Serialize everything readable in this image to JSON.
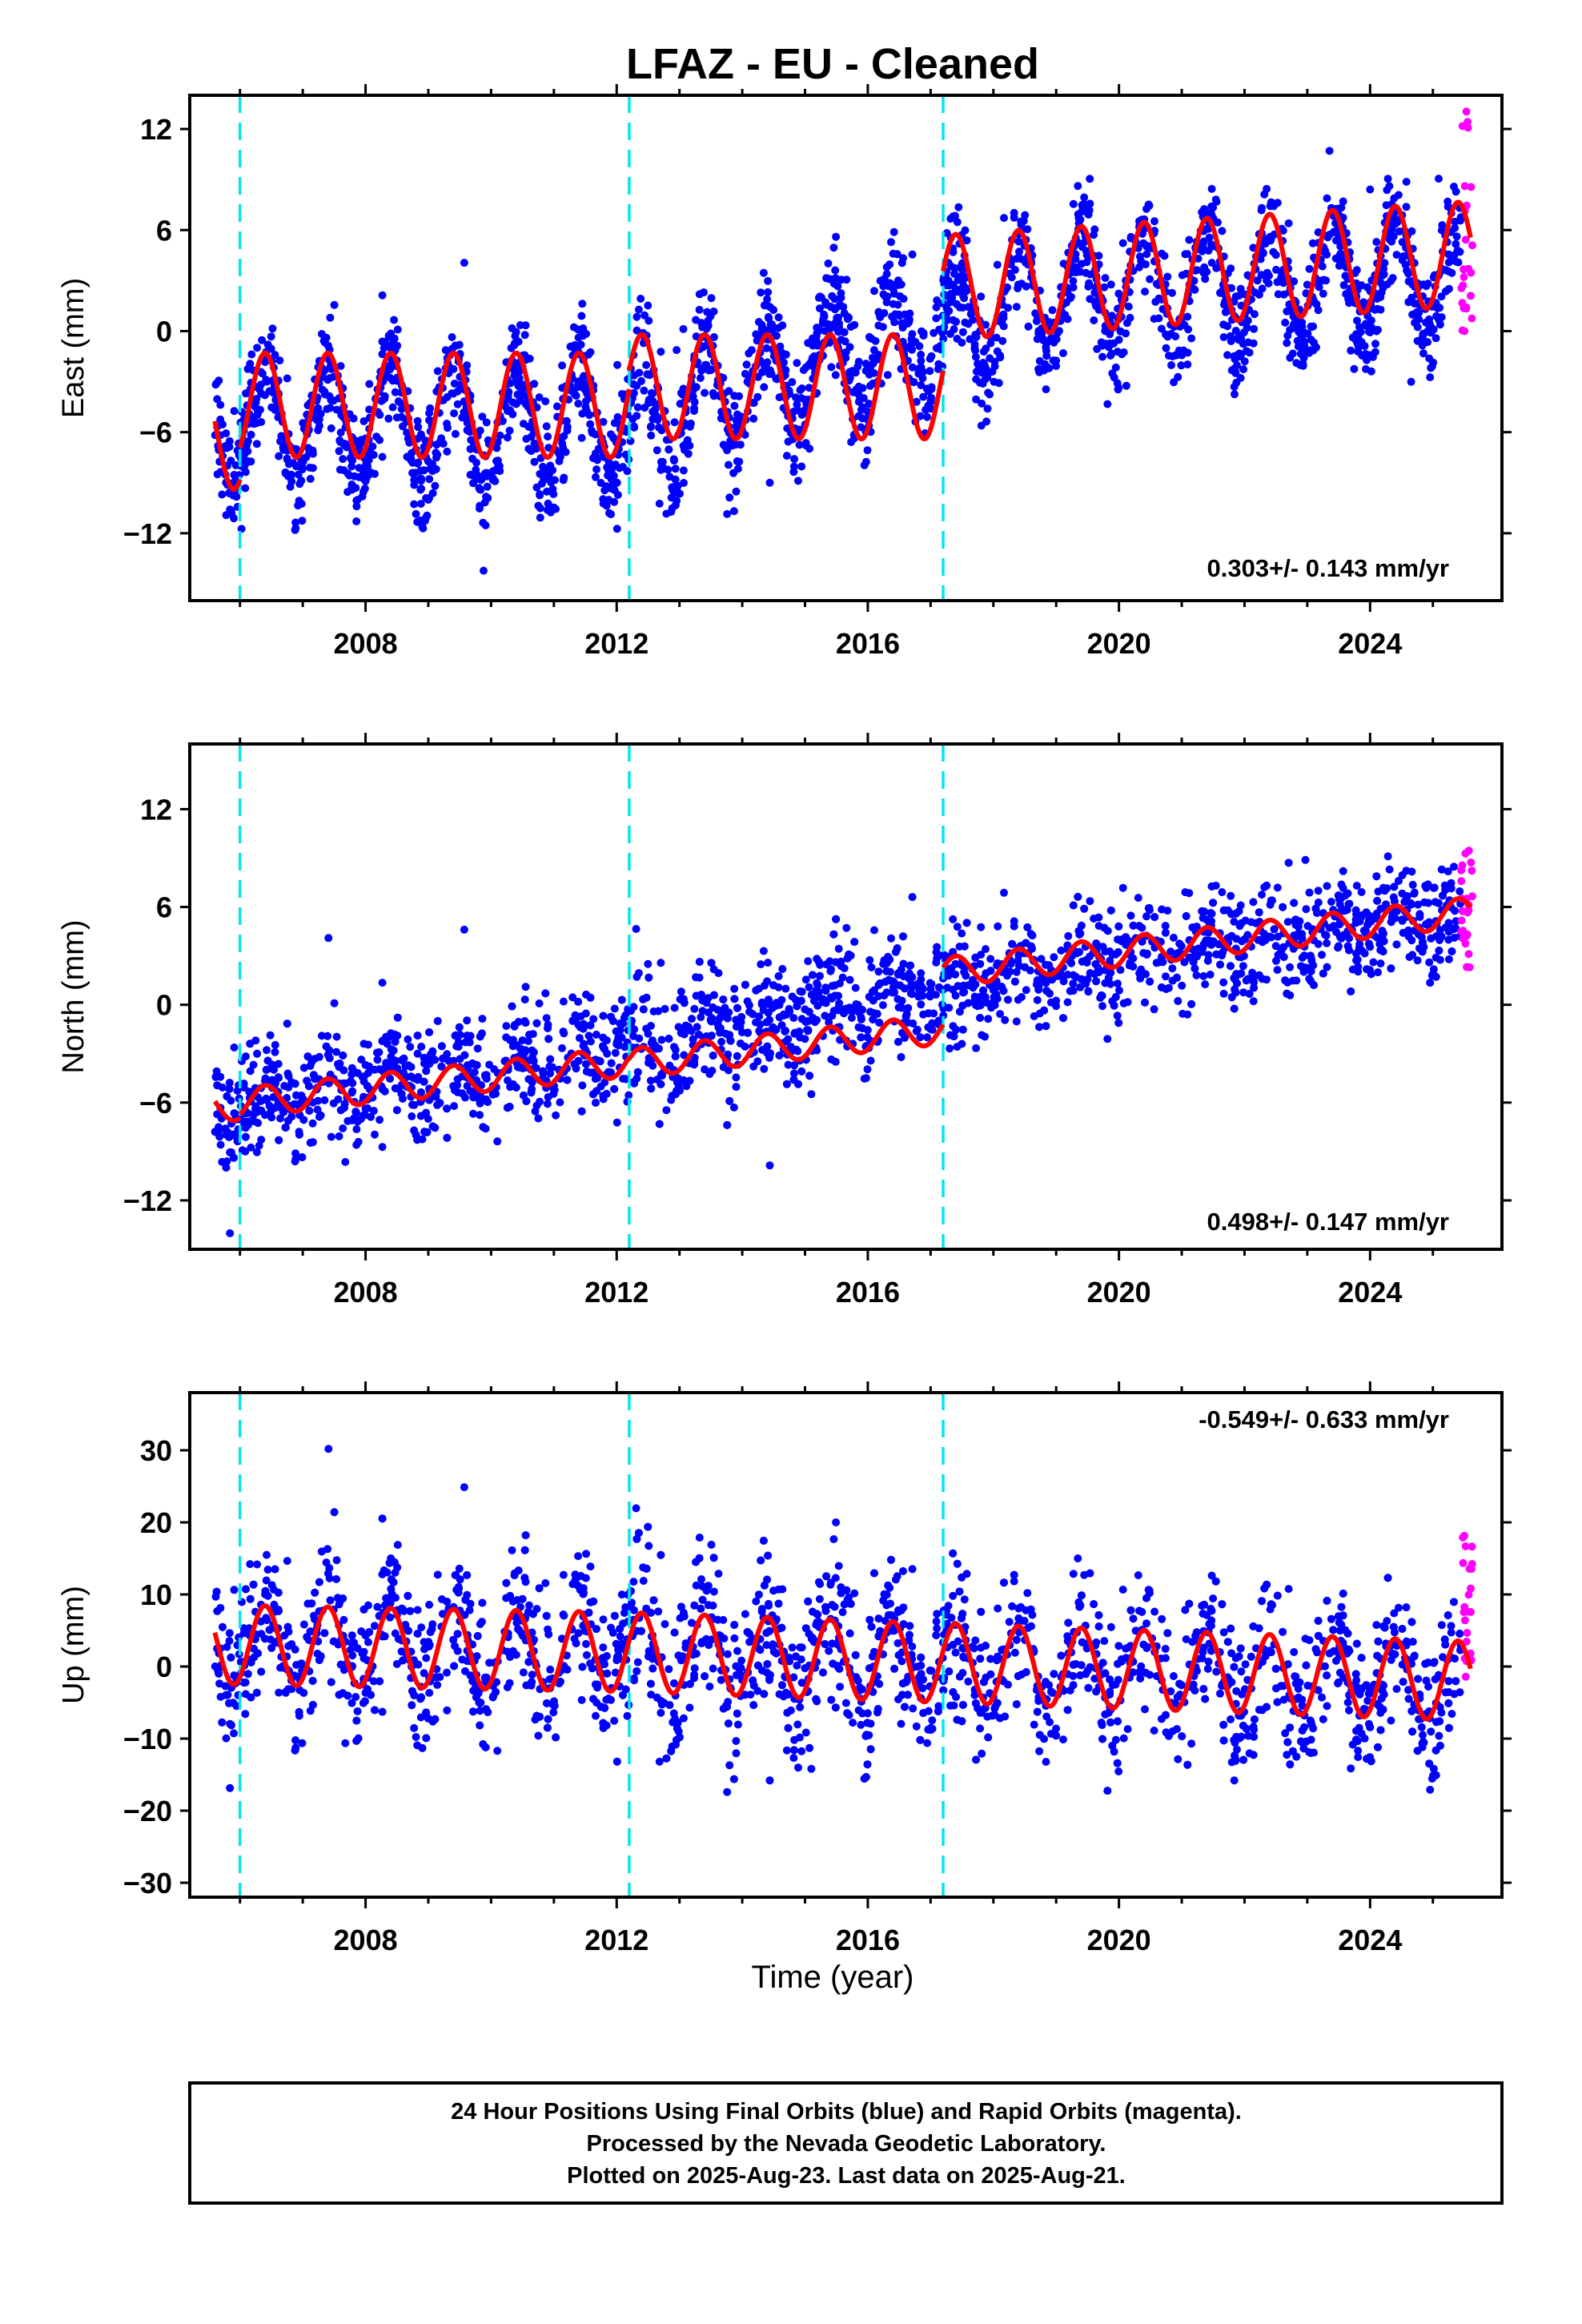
{
  "title": "LFAZ  - EU - Cleaned",
  "xlabel": "Time (year)",
  "footer": {
    "line1": "24 Hour Positions Using Final Orbits (blue) and Rapid Orbits (magenta).",
    "line2": "Processed by the Nevada Geodetic Laboratory.",
    "line3": "Plotted on 2025-Aug-23. Last data on 2025-Aug-21."
  },
  "colors": {
    "final_orbits": "#0000ff",
    "rapid_orbits": "#ff00ff",
    "model_fit": "#ff0000",
    "steps": "#00e5ee",
    "frame": "#000000"
  },
  "chart_data": [
    {
      "type": "scatter",
      "id": "east",
      "ylabel": "East (mm)",
      "rate_text": "0.303+/- 0.143 mm/yr",
      "xlim": [
        2005.2,
        2026.1
      ],
      "ylim": [
        -16,
        14
      ],
      "yticks": [
        -12,
        -6,
        0,
        6,
        12
      ],
      "xticks": [
        2008,
        2012,
        2016,
        2020,
        2024
      ],
      "steps": [
        2006.0,
        2012.2,
        2017.2
      ],
      "series": [
        {
          "role": "final",
          "x_range": [
            2005.6,
            2025.45
          ],
          "trend": [
            -5.5,
            -5.5,
            2.2,
            3.7
          ],
          "annual_amplitude": 3.3,
          "scatter": 1.6
        },
        {
          "role": "rapid",
          "x_range": [
            2025.45,
            2025.63
          ],
          "values_range": [
            0.0,
            13.5
          ]
        }
      ],
      "model": {
        "segments": [
          [
            2005.6,
            2006.0,
            -6.3
          ],
          [
            2006.0,
            2012.2,
            -4.4
          ],
          [
            2012.2,
            2017.2,
            -3.3
          ],
          [
            2017.2,
            2025.6,
            2.6,
            4.6
          ]
        ],
        "annual_amplitude": 3.1
      }
    },
    {
      "type": "scatter",
      "id": "north",
      "ylabel": "North (mm)",
      "rate_text": "0.498+/- 0.147 mm/yr",
      "xlim": [
        2005.2,
        2026.1
      ],
      "ylim": [
        -15,
        16
      ],
      "yticks": [
        -12,
        -6,
        0,
        6,
        12
      ],
      "xticks": [
        2008,
        2012,
        2016,
        2020,
        2024
      ],
      "steps": [
        2006.0,
        2012.2,
        2017.2
      ],
      "series": [
        {
          "role": "final",
          "x_range": [
            2005.6,
            2025.45
          ],
          "trend": [
            -6.3,
            -2.6,
            2.2,
            5.8
          ],
          "annual_amplitude": 0.8,
          "scatter": 1.7
        },
        {
          "role": "rapid",
          "x_range": [
            2025.45,
            2025.63
          ],
          "values_range": [
            2.0,
            9.5
          ]
        }
      ],
      "model": {
        "segments": [
          [
            2005.6,
            2006.0,
            -6.2
          ],
          [
            2006.0,
            2012.2,
            -6.0,
            -3.5
          ],
          [
            2012.2,
            2017.2,
            -3.6,
            -1.5
          ],
          [
            2017.2,
            2025.6,
            2.0,
            5.7
          ]
        ],
        "annual_amplitude": 0.9
      }
    },
    {
      "type": "scatter",
      "id": "up",
      "ylabel": "Up (mm)",
      "rate_text": "-0.549+/- 0.633 mm/yr",
      "xlim": [
        2005.2,
        2026.1
      ],
      "ylim": [
        -32,
        38
      ],
      "yticks": [
        -30,
        -20,
        -10,
        0,
        10,
        20,
        30
      ],
      "xticks": [
        2008,
        2012,
        2016,
        2020,
        2024
      ],
      "steps": [
        2006.0,
        2012.2,
        2017.2
      ],
      "series": [
        {
          "role": "final",
          "x_range": [
            2005.6,
            2025.45
          ],
          "trend": [
            3.5,
            2.5,
            0.0,
            -2.0
          ],
          "annual_amplitude": 5.5,
          "scatter": 5.0
        },
        {
          "role": "rapid",
          "x_range": [
            2025.45,
            2025.63
          ],
          "values_range": [
            -2.0,
            18.5
          ]
        }
      ],
      "model": {
        "segments": [
          [
            2005.6,
            2006.0,
            3.0
          ],
          [
            2006.0,
            2012.2,
            3.0,
            2.0
          ],
          [
            2012.2,
            2017.2,
            2.0,
            0.5
          ],
          [
            2017.2,
            2025.6,
            0.5,
            -2.0
          ]
        ],
        "annual_amplitude": 5.5
      }
    }
  ]
}
